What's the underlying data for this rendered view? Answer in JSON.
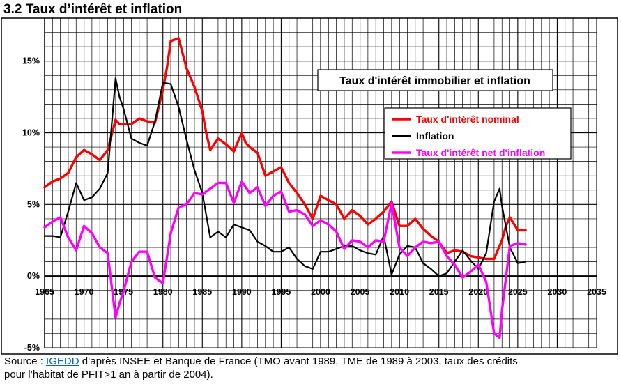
{
  "header": {
    "title": "3.2 Taux d’intérêt et inflation"
  },
  "source": {
    "prefix": "Source : ",
    "link": "IGEDD",
    "line1_rest": " d’après INSEE et  Banque de France (TMO avant 1989, TME de 1989 à 2003, taux des crédits",
    "line2": " pour l’habitat de PFIT>1 an à partir de 2004)."
  },
  "chart_data": {
    "type": "line",
    "title": "Taux d'intérêt immobilier  et inflation",
    "xlabel": "",
    "ylabel": "",
    "xlim": [
      1965,
      2035
    ],
    "ylim": [
      -5,
      18
    ],
    "x_ticks": [
      "1965",
      "1970",
      "1975",
      "1980",
      "1985",
      "1990",
      "1995",
      "2000",
      "2005",
      "2010",
      "2015",
      "2020",
      "2025",
      "2030",
      "2035"
    ],
    "y_ticks": [
      "-5%",
      "0%",
      "5%",
      "10%",
      "15%"
    ],
    "y_tick_values": [
      -5,
      0,
      5,
      10,
      15
    ],
    "grid": true,
    "legend_position": "top-right",
    "series": [
      {
        "name": "Taux d'intérêt nominal",
        "color": "#ff0000",
        "x": [
          1965,
          1966,
          1967,
          1968,
          1969,
          1970,
          1971,
          1972,
          1973,
          1974,
          1974.5,
          1975,
          1976,
          1977,
          1978,
          1979,
          1980,
          1980.5,
          1981,
          1982,
          1983,
          1984,
          1985,
          1985.5,
          1986,
          1987,
          1988,
          1989,
          1990,
          1990.5,
          1991,
          1992,
          1993,
          1994,
          1995,
          1996,
          1997,
          1998,
          1999,
          2000,
          2001,
          2002,
          2003,
          2004,
          2005,
          2006,
          2007,
          2008,
          2009,
          2010,
          2011,
          2012,
          2013,
          2014,
          2015,
          2016,
          2017,
          2018,
          2019,
          2020,
          2021,
          2022,
          2023,
          2023.5,
          2024,
          2025,
          2026
        ],
        "values": [
          6.2,
          6.6,
          6.8,
          7.2,
          8.3,
          8.8,
          8.5,
          8.1,
          8.8,
          10.9,
          10.6,
          10.6,
          10.6,
          11.0,
          10.8,
          10.7,
          13.0,
          14.5,
          16.4,
          16.6,
          14.5,
          13.2,
          11.5,
          10.0,
          8.8,
          9.6,
          9.2,
          8.7,
          10.0,
          9.3,
          9.0,
          8.6,
          7.0,
          7.3,
          7.6,
          6.5,
          5.8,
          5.0,
          4.0,
          5.6,
          5.3,
          5.0,
          4.0,
          4.6,
          4.2,
          3.6,
          4.0,
          4.5,
          5.2,
          3.5,
          3.5,
          4.0,
          3.3,
          2.8,
          2.4,
          1.6,
          1.8,
          1.7,
          1.4,
          1.3,
          1.2,
          1.2,
          2.5,
          3.5,
          4.1,
          3.2,
          3.2
        ]
      },
      {
        "name": "Inflation",
        "color": "#000000",
        "x": [
          1965,
          1966,
          1967,
          1968,
          1969,
          1970,
          1971,
          1972,
          1973,
          1974,
          1974.5,
          1975,
          1976,
          1977,
          1978,
          1979,
          1980,
          1981,
          1982,
          1983,
          1984,
          1985,
          1986,
          1987,
          1988,
          1989,
          1990,
          1991,
          1992,
          1993,
          1994,
          1995,
          1996,
          1997,
          1998,
          1999,
          2000,
          2001,
          2002,
          2003,
          2004,
          2005,
          2006,
          2007,
          2008,
          2009,
          2010,
          2011,
          2012,
          2013,
          2014,
          2015,
          2016,
          2017,
          2018,
          2019,
          2020,
          2021,
          2022,
          2022.7,
          2023,
          2024,
          2025,
          2026
        ],
        "values": [
          2.8,
          2.8,
          2.7,
          4.5,
          6.5,
          5.3,
          5.5,
          6.1,
          7.2,
          13.8,
          12.5,
          11.7,
          9.6,
          9.3,
          9.1,
          10.8,
          13.5,
          13.4,
          11.8,
          9.5,
          7.4,
          5.8,
          2.7,
          3.1,
          2.7,
          3.6,
          3.4,
          3.2,
          2.4,
          2.1,
          1.7,
          1.7,
          2.0,
          1.2,
          0.7,
          0.5,
          1.7,
          1.7,
          1.9,
          2.1,
          2.1,
          1.8,
          1.6,
          1.5,
          2.8,
          0.1,
          1.5,
          2.1,
          2.0,
          0.9,
          0.5,
          0.0,
          0.2,
          1.0,
          1.8,
          1.1,
          0.5,
          1.6,
          5.2,
          6.1,
          4.9,
          2.0,
          0.9,
          1.0
        ]
      },
      {
        "name": "Taux d'intérêt net d'inflation",
        "color": "#ff00ff",
        "x": [
          1965,
          1966,
          1967,
          1968,
          1969,
          1970,
          1971,
          1972,
          1973,
          1974,
          1974.5,
          1975,
          1976,
          1977,
          1978,
          1979,
          1980,
          1981,
          1982,
          1983,
          1984,
          1985,
          1986,
          1987,
          1988,
          1989,
          1990,
          1991,
          1992,
          1993,
          1994,
          1995,
          1996,
          1997,
          1998,
          1999,
          2000,
          2001,
          2002,
          2003,
          2004,
          2005,
          2006,
          2007,
          2008,
          2009,
          2010,
          2011,
          2012,
          2013,
          2014,
          2015,
          2016,
          2017,
          2018,
          2019,
          2020,
          2021,
          2022,
          2022.7,
          2023,
          2024,
          2025,
          2026
        ],
        "values": [
          3.4,
          3.8,
          4.1,
          2.7,
          1.8,
          3.5,
          3.0,
          2.0,
          1.6,
          -2.9,
          -1.9,
          -1.1,
          1.0,
          1.7,
          1.7,
          -0.1,
          -0.5,
          3.0,
          4.8,
          5.0,
          5.8,
          5.7,
          6.1,
          6.5,
          6.5,
          5.1,
          6.6,
          5.8,
          6.2,
          4.9,
          5.6,
          5.9,
          4.5,
          4.6,
          4.3,
          3.5,
          3.9,
          3.6,
          3.1,
          1.9,
          2.5,
          2.4,
          2.0,
          2.5,
          2.4,
          5.1,
          2.0,
          1.4,
          2.0,
          2.4,
          2.3,
          2.4,
          1.4,
          0.8,
          -0.1,
          0.3,
          0.8,
          -0.4,
          -4.0,
          -4.3,
          -2.4,
          2.1,
          2.3,
          2.2
        ]
      }
    ]
  }
}
